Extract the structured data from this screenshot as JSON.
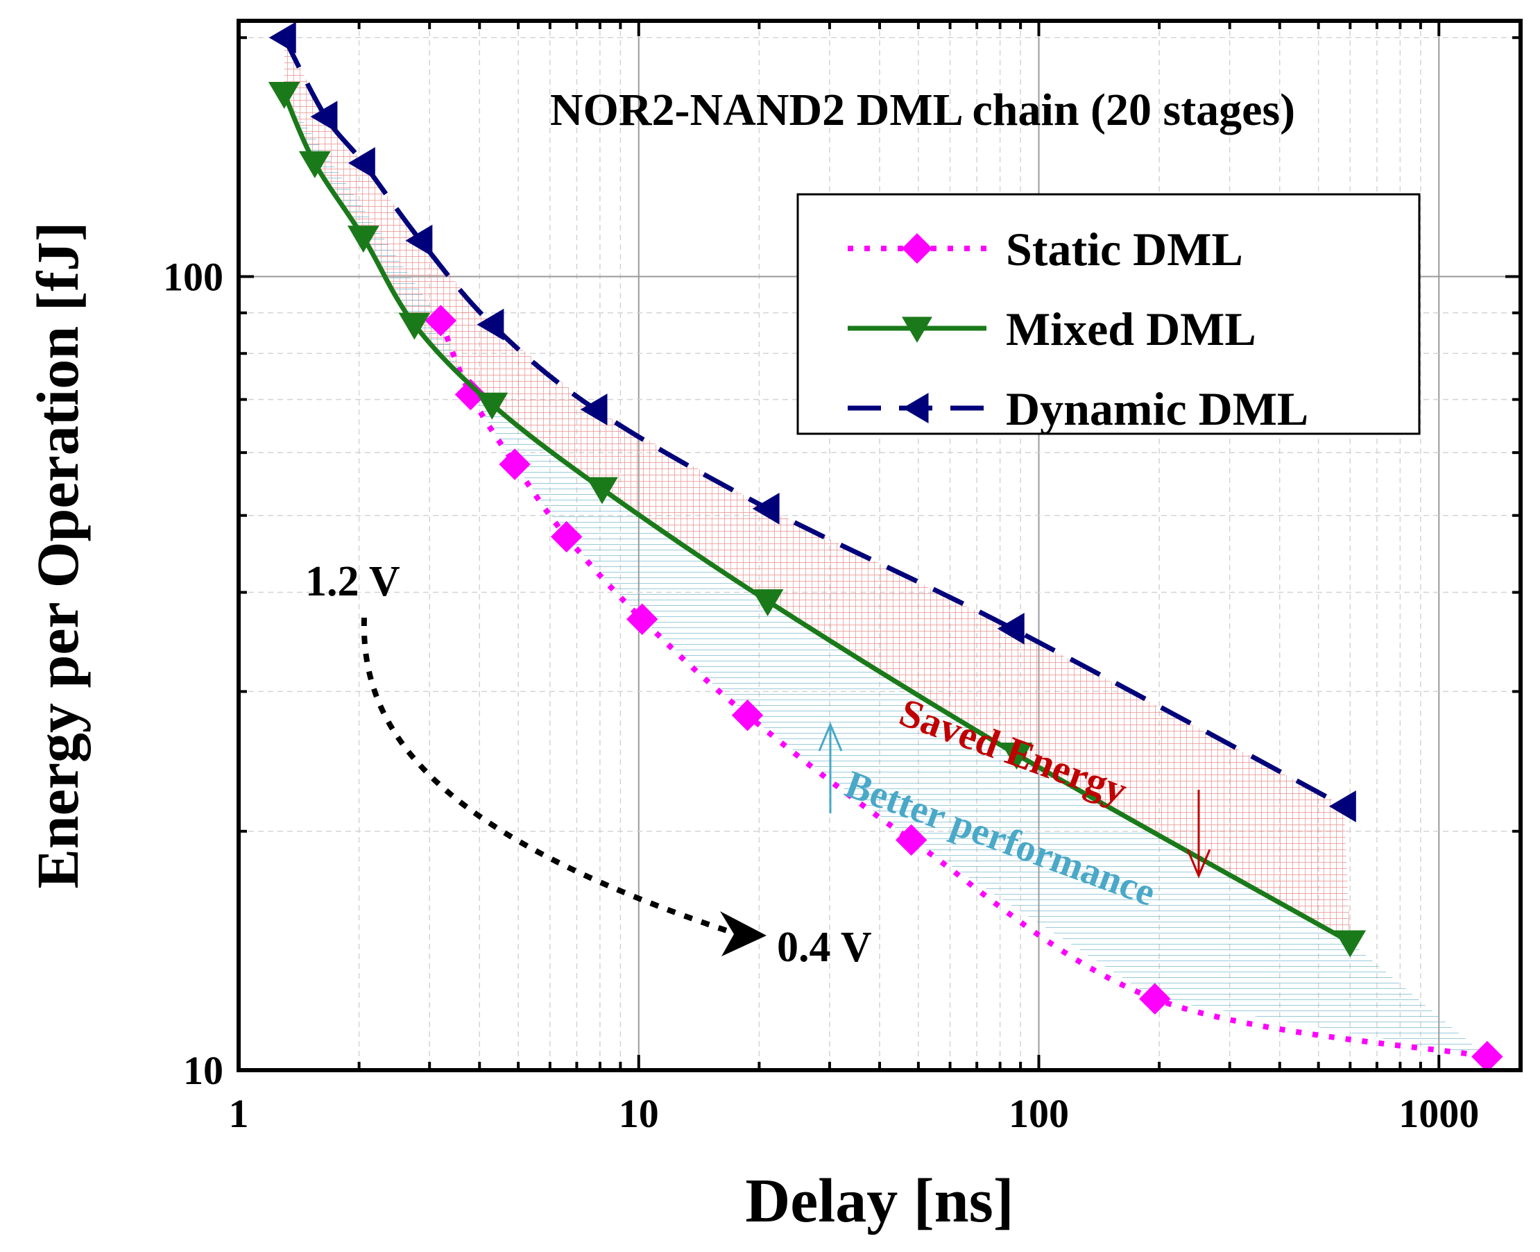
{
  "chart_data": {
    "type": "line",
    "title": "NOR2-NAND2 DML chain (20 stages)",
    "xlabel": "Delay [ns]",
    "ylabel": "Energy per Operation [fJ]",
    "xscale": "log",
    "yscale": "log",
    "xlim": [
      1,
      1600
    ],
    "ylim": [
      10,
      210
    ],
    "xticks": [
      {
        "value": 1,
        "label": "1"
      },
      {
        "value": 10,
        "label": "10"
      },
      {
        "value": 100,
        "label": "100"
      },
      {
        "value": 1000,
        "label": "1000"
      }
    ],
    "yticks": [
      {
        "value": 10,
        "label": "10"
      },
      {
        "value": 100,
        "label": "100"
      }
    ],
    "grid": true,
    "legend_position": "top-right",
    "series": [
      {
        "name": "Static DML",
        "color": "#ff00ff",
        "line_style": "dotted",
        "marker": "diamond",
        "x": [
          3.2,
          3.8,
          4.9,
          6.6,
          10.2,
          18.7,
          48,
          195,
          1320
        ],
        "y": [
          88,
          71,
          58,
          47,
          37,
          28,
          19.5,
          12.3,
          10.4
        ]
      },
      {
        "name": "Mixed DML",
        "color": "#1a7a1a",
        "line_style": "solid",
        "marker": "triangle-down",
        "x": [
          1.3,
          1.55,
          2.05,
          2.75,
          4.3,
          8.1,
          21,
          88,
          600
        ],
        "y": [
          170,
          139,
          112,
          87,
          69,
          54,
          39,
          25,
          14.5
        ]
      },
      {
        "name": "Dynamic DML",
        "color": "#00007a",
        "line_style": "dashed",
        "marker": "triangle-left",
        "x": [
          1.3,
          1.65,
          2.05,
          2.85,
          4.3,
          7.8,
          21,
          86,
          580
        ],
        "y": [
          200,
          159,
          139,
          111,
          87,
          68,
          51,
          36,
          21.5
        ]
      }
    ],
    "annotations": {
      "saved_energy": "Saved Energy",
      "better_performance": "Better performance",
      "voltage_high": "1.2 V",
      "voltage_low": "0.4 V"
    },
    "colors": {
      "saved_energy_fill": "#e88080",
      "saved_energy_text": "#c00000",
      "better_performance_fill": "#6ab0c8",
      "better_performance_text": "#4aa8c8"
    }
  }
}
